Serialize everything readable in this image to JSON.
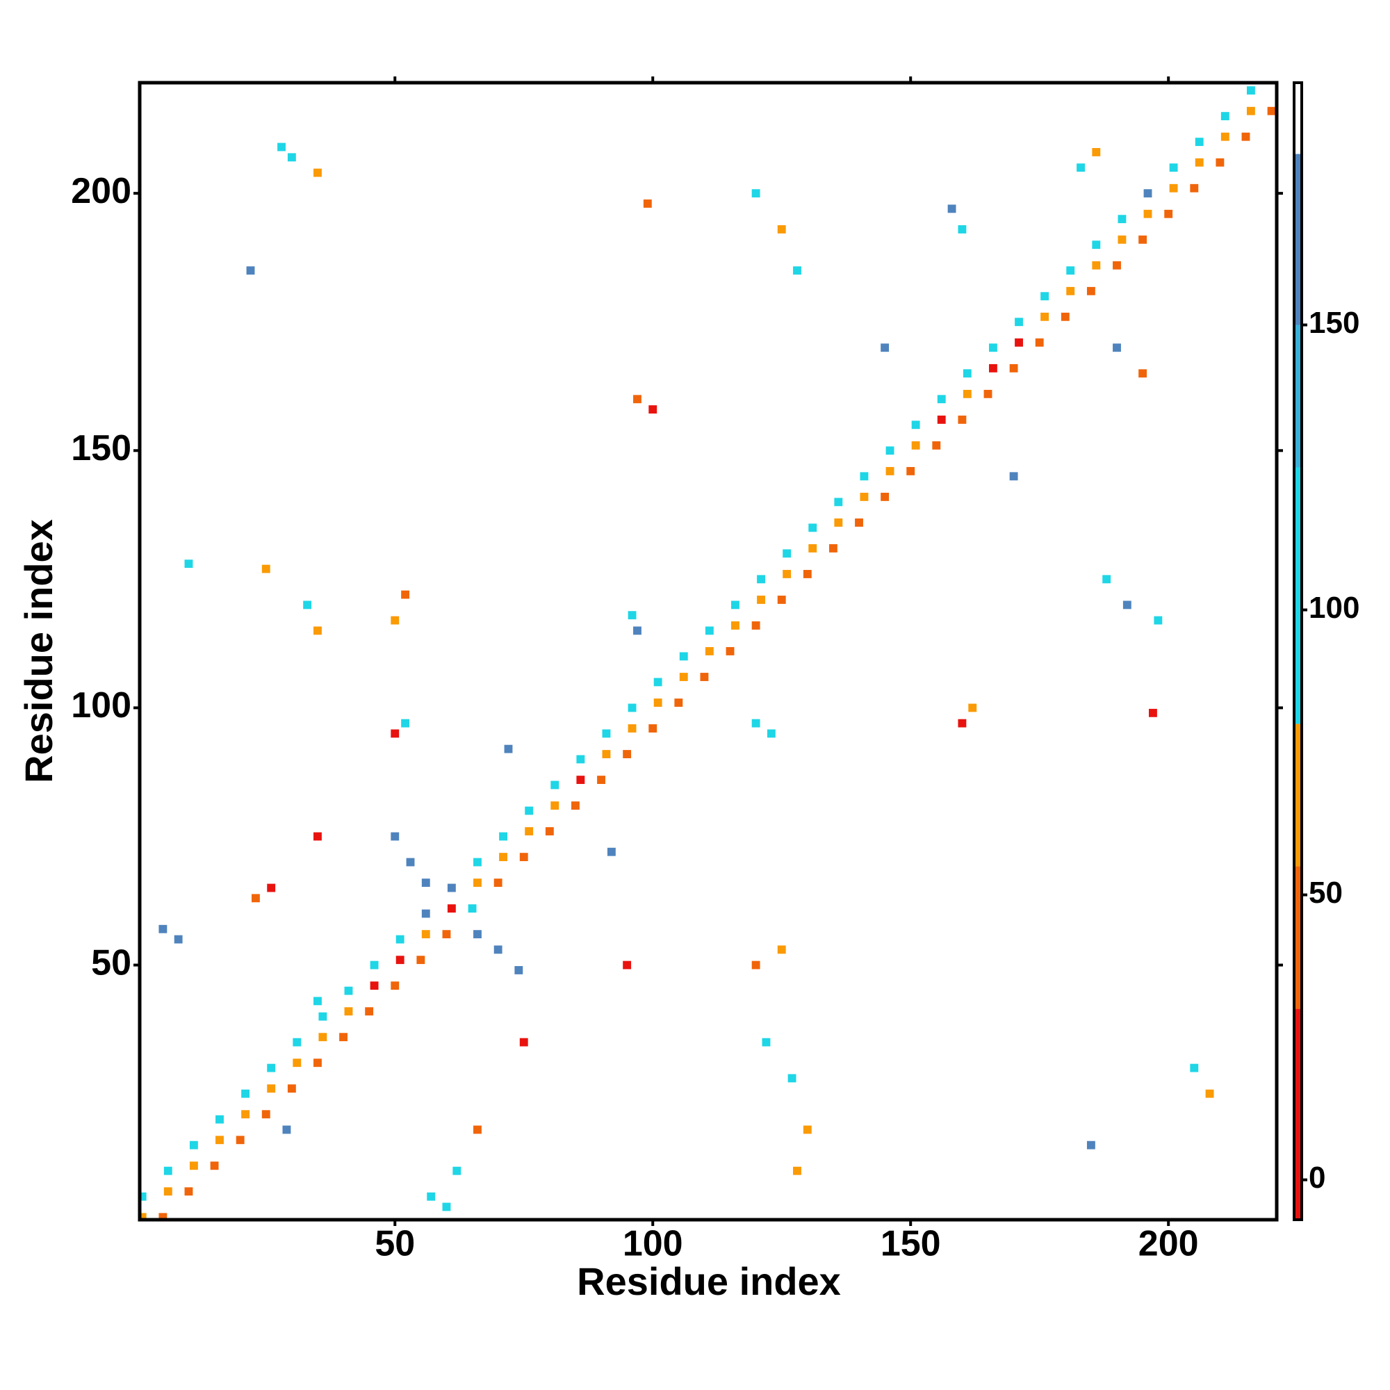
{
  "chart_data": {
    "type": "heatmap",
    "xlabel": "Residue index",
    "ylabel": "Residue index",
    "xlim": [
      0.5,
      221
    ],
    "ylim": [
      0.5,
      221.5
    ],
    "xticks": [
      50,
      100,
      150,
      200
    ],
    "yticks": [
      50,
      100,
      150,
      200
    ],
    "x": [
      1,
      1,
      5,
      6,
      6,
      10,
      11,
      11,
      15,
      16,
      16,
      20,
      21,
      21,
      25,
      26,
      26,
      30,
      31,
      31,
      35,
      36,
      36,
      40,
      41,
      41,
      45,
      46,
      46,
      50,
      51,
      51,
      55,
      56,
      56,
      60,
      61,
      61,
      65,
      66,
      66,
      70,
      71,
      71,
      75,
      76,
      76,
      80,
      81,
      81,
      85,
      86,
      86,
      90,
      91,
      91,
      95,
      96,
      96,
      100,
      101,
      101,
      105,
      106,
      106,
      110,
      111,
      111,
      115,
      116,
      116,
      120,
      121,
      121,
      125,
      126,
      126,
      130,
      131,
      131,
      135,
      136,
      136,
      140,
      141,
      141,
      145,
      146,
      146,
      150,
      151,
      151,
      155,
      156,
      156,
      160,
      161,
      161,
      165,
      166,
      166,
      170,
      171,
      171,
      175,
      176,
      176,
      180,
      181,
      181,
      185,
      186,
      186,
      190,
      191,
      191,
      195,
      196,
      196,
      200,
      201,
      201,
      205,
      206,
      206,
      210,
      211,
      211,
      215,
      216,
      216,
      220,
      50,
      53,
      56,
      66,
      70,
      74,
      5,
      8,
      57,
      60,
      30,
      35,
      28,
      205,
      208,
      10,
      25,
      33,
      35,
      188,
      192,
      198,
      52,
      50,
      120,
      125,
      50,
      52,
      95,
      97,
      100,
      160,
      162,
      120,
      125,
      128,
      122,
      127,
      130,
      128,
      96,
      97,
      120,
      123,
      183,
      186,
      158,
      160,
      190,
      195,
      145,
      170,
      99,
      197,
      22,
      75,
      35,
      92,
      72,
      23,
      26,
      35,
      62,
      66,
      29,
      185
    ],
    "y": [
      1,
      5,
      1,
      6,
      10,
      6,
      11,
      15,
      11,
      16,
      20,
      16,
      21,
      25,
      21,
      26,
      30,
      26,
      31,
      35,
      31,
      36,
      40,
      36,
      41,
      45,
      41,
      46,
      50,
      46,
      51,
      55,
      51,
      56,
      60,
      56,
      61,
      65,
      61,
      66,
      70,
      66,
      71,
      75,
      71,
      76,
      80,
      76,
      81,
      85,
      81,
      86,
      90,
      86,
      91,
      95,
      91,
      96,
      100,
      96,
      101,
      105,
      101,
      106,
      110,
      106,
      111,
      115,
      111,
      116,
      120,
      116,
      121,
      125,
      121,
      126,
      130,
      126,
      131,
      135,
      131,
      136,
      140,
      136,
      141,
      145,
      141,
      146,
      150,
      146,
      151,
      155,
      151,
      156,
      160,
      156,
      161,
      165,
      161,
      166,
      170,
      166,
      171,
      175,
      171,
      176,
      180,
      176,
      181,
      185,
      181,
      186,
      190,
      186,
      191,
      195,
      191,
      196,
      200,
      196,
      201,
      205,
      201,
      206,
      210,
      206,
      211,
      215,
      211,
      216,
      220,
      216,
      75,
      70,
      66,
      56,
      53,
      49,
      57,
      55,
      5,
      3,
      207,
      204,
      209,
      30,
      25,
      128,
      127,
      120,
      115,
      125,
      120,
      117,
      122,
      117,
      50,
      53,
      95,
      97,
      50,
      160,
      158,
      97,
      100,
      200,
      193,
      185,
      35,
      28,
      18,
      10,
      118,
      115,
      97,
      95,
      205,
      208,
      197,
      193,
      170,
      165,
      170,
      145,
      198,
      99,
      185,
      35,
      75,
      72,
      92,
      63,
      65,
      43,
      10,
      18,
      18,
      15
    ],
    "values": [
      60,
      100,
      40,
      60,
      100,
      40,
      60,
      100,
      30,
      60,
      100,
      40,
      60,
      100,
      40,
      60,
      100,
      40,
      60,
      100,
      40,
      60,
      100,
      40,
      60,
      100,
      40,
      10,
      100,
      40,
      10,
      100,
      40,
      60,
      160,
      40,
      20,
      160,
      100,
      60,
      100,
      40,
      60,
      100,
      40,
      60,
      100,
      40,
      60,
      100,
      40,
      10,
      100,
      40,
      60,
      100,
      40,
      60,
      100,
      40,
      60,
      100,
      40,
      60,
      100,
      40,
      60,
      100,
      40,
      60,
      100,
      40,
      60,
      100,
      40,
      60,
      100,
      40,
      60,
      100,
      40,
      60,
      100,
      40,
      60,
      100,
      40,
      60,
      100,
      40,
      60,
      100,
      40,
      10,
      100,
      40,
      60,
      100,
      40,
      10,
      100,
      40,
      10,
      100,
      40,
      60,
      100,
      40,
      60,
      100,
      40,
      60,
      100,
      40,
      60,
      100,
      40,
      60,
      160,
      40,
      60,
      100,
      40,
      60,
      100,
      40,
      60,
      100,
      40,
      60,
      100,
      40,
      160,
      160,
      160,
      160,
      160,
      160,
      160,
      160,
      100,
      100,
      100,
      60,
      100,
      100,
      60,
      100,
      60,
      100,
      60,
      100,
      160,
      100,
      40,
      60,
      40,
      60,
      10,
      100,
      20,
      40,
      10,
      10,
      60,
      100,
      60,
      100,
      100,
      100,
      60,
      60,
      100,
      160,
      100,
      100,
      100,
      60,
      160,
      100,
      160,
      40,
      160,
      160,
      40,
      10,
      160,
      10,
      10,
      160,
      160,
      40,
      10,
      100,
      100,
      40,
      160,
      160
    ],
    "colorbar": {
      "lim": [
        -7,
        192.5
      ],
      "ticks": [
        0,
        50,
        100,
        150
      ],
      "bands": [
        {
          "min": -7,
          "max": 30,
          "color": "#e8130f"
        },
        {
          "min": 30,
          "max": 55,
          "color": "#f0650a"
        },
        {
          "min": 55,
          "max": 80,
          "color": "#fa9a05"
        },
        {
          "min": 80,
          "max": 125,
          "color": "#1ed6e6"
        },
        {
          "min": 125,
          "max": 150,
          "color": "#3ab0da"
        },
        {
          "min": 150,
          "max": 180,
          "color": "#4f83bd"
        },
        {
          "min": 180,
          "max": 192.5,
          "color": "#ffffff"
        }
      ]
    }
  }
}
